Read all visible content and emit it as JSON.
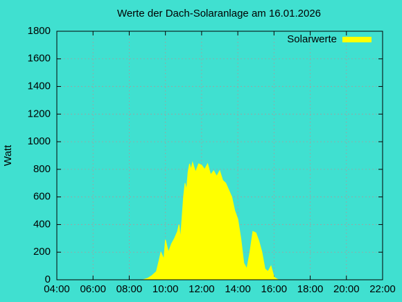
{
  "chart_data": {
    "type": "area",
    "title": "Werte der Dach-Solaranlage am 16.01.2026",
    "y_label": "Watt",
    "x": [
      "08:45",
      "09:00",
      "09:15",
      "09:30",
      "09:40",
      "09:45",
      "09:55",
      "10:00",
      "10:10",
      "10:20",
      "10:30",
      "10:40",
      "10:45",
      "10:50",
      "11:00",
      "11:05",
      "11:10",
      "11:15",
      "11:20",
      "11:25",
      "11:30",
      "11:40",
      "11:50",
      "12:00",
      "12:10",
      "12:20",
      "12:30",
      "12:40",
      "12:50",
      "13:00",
      "13:10",
      "13:20",
      "13:30",
      "13:40",
      "13:50",
      "14:00",
      "14:10",
      "14:20",
      "14:30",
      "14:40",
      "14:50",
      "15:00",
      "15:10",
      "15:20",
      "15:30",
      "15:40",
      "15:50",
      "16:00",
      "16:10",
      "16:15"
    ],
    "series": [
      {
        "name": "Solarwerte",
        "color": "#ffff00",
        "values": [
          0,
          10,
          30,
          60,
          150,
          200,
          150,
          290,
          200,
          260,
          300,
          350,
          400,
          300,
          600,
          700,
          650,
          780,
          840,
          800,
          850,
          780,
          840,
          830,
          800,
          840,
          760,
          790,
          750,
          790,
          720,
          700,
          650,
          600,
          500,
          440,
          300,
          120,
          80,
          200,
          350,
          340,
          280,
          200,
          80,
          60,
          100,
          20,
          5,
          0
        ]
      }
    ],
    "xlim": [
      "04:00",
      "22:00"
    ],
    "xticks": [
      "04:00",
      "06:00",
      "08:00",
      "10:00",
      "12:00",
      "14:00",
      "16:00",
      "18:00",
      "20:00",
      "22:00"
    ],
    "ylim": [
      0,
      1800
    ],
    "yticks": [
      0,
      200,
      400,
      600,
      800,
      1000,
      1200,
      1400,
      1600,
      1800
    ],
    "grid": true,
    "legend": "top-right"
  }
}
